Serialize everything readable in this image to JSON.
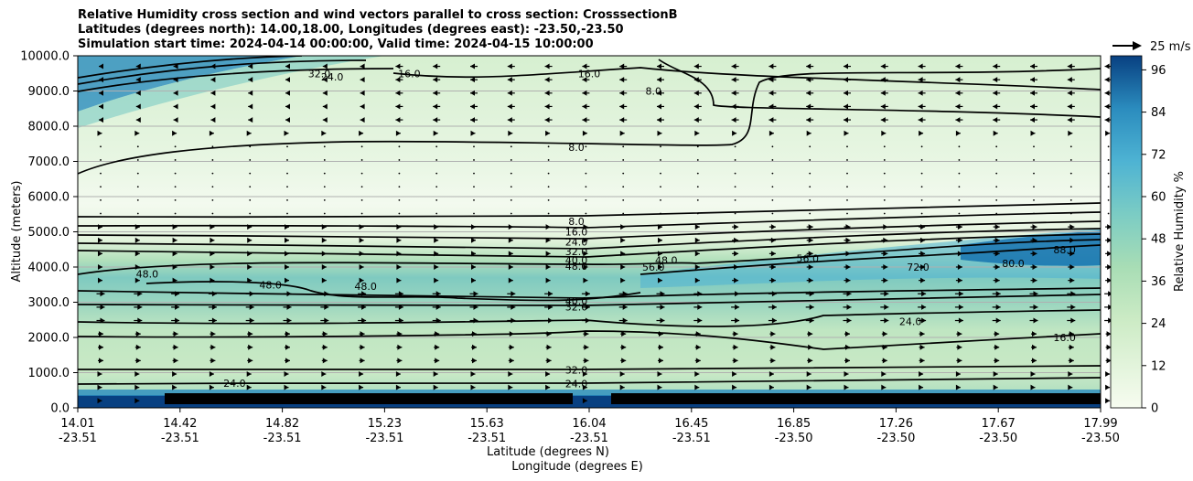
{
  "title_lines": [
    "Relative Humidity cross section and wind vectors parallel to cross section: CrosssectionB",
    "Latitudes (degrees north): 14.00,18.00, Longitudes (degrees east): -23.50,-23.50",
    "Simulation start time: 2024-04-14 00:00:00, Valid time: 2024-04-15 10:00:00"
  ],
  "chart_data": {
    "type": "heatmap",
    "title": "Relative Humidity cross section and wind vectors parallel to cross section: CrosssectionB",
    "ylabel": "Altitude (meters)",
    "xlabel_lat": "Latitude (degrees N)",
    "xlabel_lon": "Longitude (degrees E)",
    "ylim": [
      0,
      10000
    ],
    "yticks": [
      "0.0",
      "1000.0",
      "2000.0",
      "3000.0",
      "4000.0",
      "5000.0",
      "6000.0",
      "7000.0",
      "8000.0",
      "9000.0",
      "10000.0"
    ],
    "xticks_lat": [
      "14.01",
      "14.42",
      "14.82",
      "15.23",
      "15.63",
      "16.04",
      "16.45",
      "16.85",
      "17.26",
      "17.67",
      "17.99"
    ],
    "xticks_lon": [
      "-23.51",
      "-23.51",
      "-23.51",
      "-23.51",
      "-23.51",
      "-23.51",
      "-23.51",
      "-23.50",
      "-23.50",
      "-23.50",
      "-23.50"
    ],
    "colorbar_label": "Relative Humidity %",
    "colorbar_ticks": [
      "0",
      "12",
      "24",
      "36",
      "48",
      "60",
      "72",
      "84",
      "96"
    ],
    "quiver_key": "25 m/s",
    "contour_labels": [
      {
        "text": "8.0",
        "x": 15.95,
        "y": 7400
      },
      {
        "text": "16.0",
        "x": 16.0,
        "y": 9500
      },
      {
        "text": "16.0",
        "x": 15.3,
        "y": 9500
      },
      {
        "text": "24.0",
        "x": 15.0,
        "y": 9400
      },
      {
        "text": "32.0",
        "x": 14.95,
        "y": 9500
      },
      {
        "text": "8.0",
        "x": 16.25,
        "y": 9000
      },
      {
        "text": "8.0",
        "x": 15.95,
        "y": 5300
      },
      {
        "text": "16.0",
        "x": 15.95,
        "y": 5000
      },
      {
        "text": "24.0",
        "x": 15.95,
        "y": 4720
      },
      {
        "text": "32.0",
        "x": 15.95,
        "y": 4440
      },
      {
        "text": "40.0",
        "x": 15.95,
        "y": 4200
      },
      {
        "text": "48.0",
        "x": 15.95,
        "y": 4020
      },
      {
        "text": "48.0",
        "x": 16.3,
        "y": 4200
      },
      {
        "text": "56.0",
        "x": 16.25,
        "y": 4000
      },
      {
        "text": "56.0",
        "x": 16.85,
        "y": 4250
      },
      {
        "text": "72.0",
        "x": 17.28,
        "y": 4000
      },
      {
        "text": "80.0",
        "x": 17.65,
        "y": 4100
      },
      {
        "text": "88.0",
        "x": 17.85,
        "y": 4500
      },
      {
        "text": "48.0",
        "x": 14.28,
        "y": 3800
      },
      {
        "text": "48.0",
        "x": 14.76,
        "y": 3500
      },
      {
        "text": "48.0",
        "x": 15.13,
        "y": 3450
      },
      {
        "text": "40.0",
        "x": 15.95,
        "y": 3040
      },
      {
        "text": "32.0",
        "x": 15.95,
        "y": 2870
      },
      {
        "text": "24.0",
        "x": 17.25,
        "y": 2450
      },
      {
        "text": "16.0",
        "x": 17.85,
        "y": 2000
      },
      {
        "text": "32.0",
        "x": 15.95,
        "y": 1080
      },
      {
        "text": "24.0",
        "x": 15.95,
        "y": 690
      },
      {
        "text": "24.0",
        "x": 14.62,
        "y": 700
      }
    ]
  }
}
